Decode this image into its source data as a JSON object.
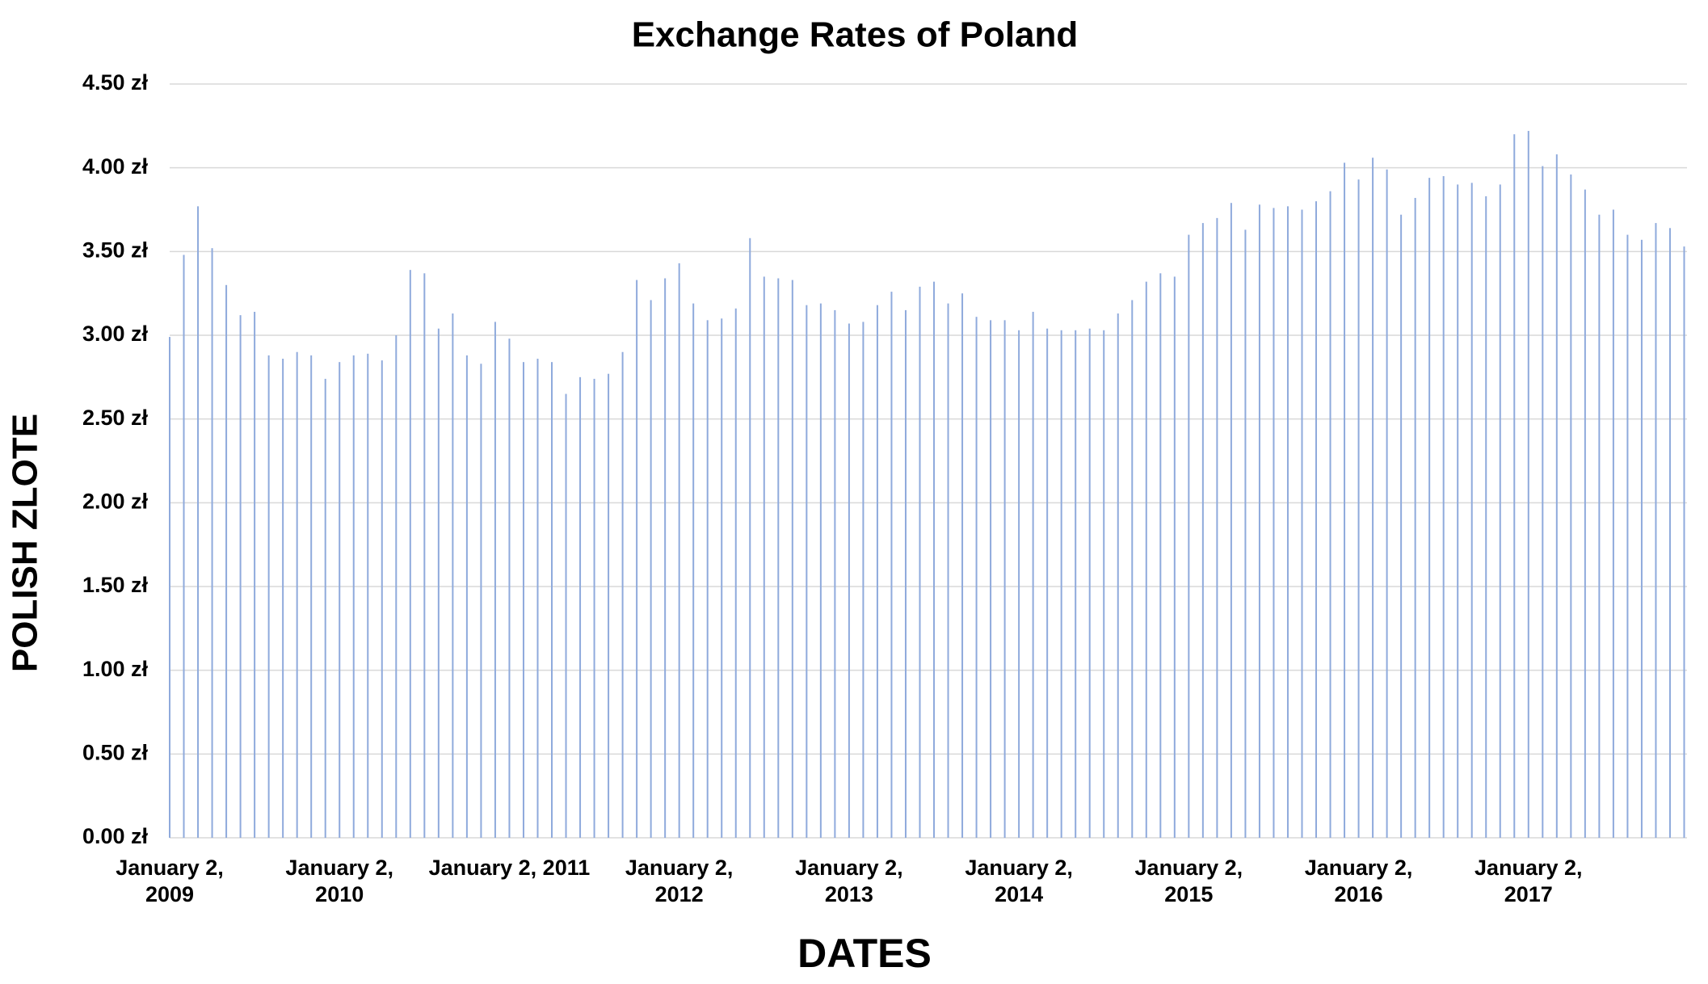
{
  "chart_data": {
    "type": "bar",
    "title": "Exchange Rates of Poland",
    "x_label": "DATES",
    "y_label": "POLISH ZLOTE",
    "categories": [
      "January 2, 2009",
      null,
      null,
      null,
      null,
      null,
      null,
      null,
      null,
      null,
      null,
      null,
      "January 2, 2010",
      null,
      null,
      null,
      null,
      null,
      null,
      null,
      null,
      null,
      null,
      null,
      "January 2, 2011",
      null,
      null,
      null,
      null,
      null,
      null,
      null,
      null,
      null,
      null,
      null,
      "January 2, 2012",
      null,
      null,
      null,
      null,
      null,
      null,
      null,
      null,
      null,
      null,
      null,
      "January 2, 2013",
      null,
      null,
      null,
      null,
      null,
      null,
      null,
      null,
      null,
      null,
      null,
      "January 2, 2014",
      null,
      null,
      null,
      null,
      null,
      null,
      null,
      null,
      null,
      null,
      null,
      "January 2, 2015",
      null,
      null,
      null,
      null,
      null,
      null,
      null,
      null,
      null,
      null,
      null,
      "January 2, 2016",
      null,
      null,
      null,
      null,
      null,
      null,
      null,
      null,
      null,
      null,
      null,
      "January 2, 2017",
      null,
      null,
      null,
      null,
      null,
      null,
      null,
      null,
      null,
      null,
      null
    ],
    "values": [
      2.99,
      3.48,
      3.77,
      3.52,
      3.3,
      3.12,
      3.14,
      2.88,
      2.86,
      2.9,
      2.88,
      2.74,
      2.84,
      2.88,
      2.89,
      2.85,
      3.0,
      3.39,
      3.37,
      3.04,
      3.13,
      2.88,
      2.83,
      3.08,
      2.98,
      2.84,
      2.86,
      2.84,
      2.65,
      2.75,
      2.74,
      2.77,
      2.9,
      3.33,
      3.21,
      3.34,
      3.43,
      3.19,
      3.09,
      3.1,
      3.16,
      3.58,
      3.35,
      3.34,
      3.33,
      3.18,
      3.19,
      3.15,
      3.07,
      3.08,
      3.18,
      3.26,
      3.15,
      3.29,
      3.32,
      3.19,
      3.25,
      3.11,
      3.09,
      3.09,
      3.03,
      3.14,
      3.04,
      3.03,
      3.03,
      3.04,
      3.03,
      3.13,
      3.21,
      3.32,
      3.37,
      3.35,
      3.6,
      3.67,
      3.7,
      3.79,
      3.63,
      3.78,
      3.76,
      3.77,
      3.75,
      3.8,
      3.86,
      4.03,
      3.93,
      4.06,
      3.99,
      3.72,
      3.82,
      3.94,
      3.95,
      3.9,
      3.91,
      3.83,
      3.9,
      4.2,
      4.22,
      4.01,
      4.08,
      3.96,
      3.87,
      3.72,
      3.75,
      3.6,
      3.57,
      3.67,
      3.64,
      3.53
    ],
    "color": "#8faadc",
    "ylim": [
      0,
      4.5
    ],
    "yticks": [
      {
        "value": 0,
        "label": "0.00 zł"
      },
      {
        "value": 0.5,
        "label": "0.50 zł"
      },
      {
        "value": 1,
        "label": "1.00 zł"
      },
      {
        "value": 1.5,
        "label": "1.50 zł"
      },
      {
        "value": 2,
        "label": "2.00 zł"
      },
      {
        "value": 2.5,
        "label": "2.50 zł"
      },
      {
        "value": 3,
        "label": "3.00 zł"
      },
      {
        "value": 3.5,
        "label": "3.50 zł"
      },
      {
        "value": 4,
        "label": "4.00 zł"
      },
      {
        "value": 4.5,
        "label": "4.50 zł"
      }
    ],
    "grid": true
  }
}
